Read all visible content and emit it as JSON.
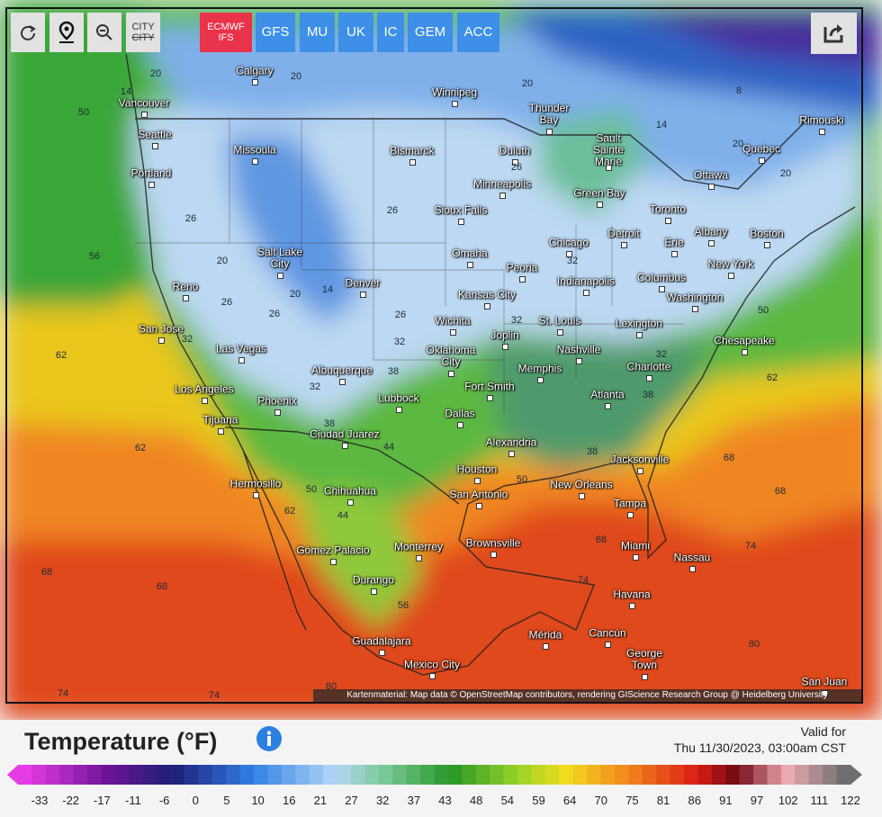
{
  "toolbar": {
    "city_toggle": [
      "CITY",
      "CITY"
    ],
    "models": [
      "ECMWF IFS",
      "GFS",
      "MU",
      "UK",
      "IC",
      "GEM",
      "ACC"
    ]
  },
  "map": {
    "cities": [
      "Calgary",
      "Winnipeg",
      "Vancouver",
      "Seattle",
      "Thunder Bay",
      "Rimouski",
      "Sault Sainte Marie",
      "Missoula",
      "Bismarck",
      "Duluth",
      "Quebec",
      "Portland",
      "Ottawa",
      "Minneapolis",
      "Green Bay",
      "Sioux Falls",
      "Toronto",
      "Albany",
      "Boston",
      "Salt Lake City",
      "Chicago",
      "Detroit",
      "Erie",
      "Omaha",
      "New York",
      "Peoria",
      "Reno",
      "Denver",
      "Indianapolis",
      "Columbus",
      "Kansas City",
      "Washington",
      "San Jose",
      "Wichita",
      "St. Louis",
      "Lexington",
      "Joplin",
      "Las Vegas",
      "Chesapeake",
      "Oklahoma City",
      "Nashville",
      "Albuquerque",
      "Memphis",
      "Charlotte",
      "Los Angeles",
      "Fort Smith",
      "Lubbock",
      "Atlanta",
      "Phoenix",
      "Dallas",
      "Tijuana",
      "Ciudad Juárez",
      "Alexandria",
      "Jacksonville",
      "Houston",
      "Hermosillo",
      "New Orleans",
      "Chihuahua",
      "San Antonio",
      "Tampa",
      "Brownsville",
      "Miami",
      "Gómez Palacio",
      "Monterrey",
      "Nassau",
      "Durango",
      "Havana",
      "Mérida",
      "Cancún",
      "Guadalajara",
      "George Town",
      "Mexico City",
      "San Juan"
    ],
    "isotherm_labels": [
      50,
      56,
      62,
      62,
      68,
      68,
      74,
      74,
      20,
      20,
      14,
      26,
      20,
      26,
      20,
      14,
      26,
      32,
      32,
      38,
      44,
      50,
      44,
      56,
      62,
      38,
      32,
      26,
      26,
      32,
      32,
      26,
      20,
      68,
      68,
      74,
      62,
      50,
      80,
      80,
      74,
      68,
      50,
      38,
      38,
      32,
      20,
      20,
      14,
      8
    ],
    "attribution": "Kartenmaterial: Map data © OpenStreetMap contributors, rendering GIScience Research Group @ Heidelberg University"
  },
  "footer": {
    "title": "Temperature (°F)",
    "valid_label": "Valid for",
    "valid_time": "Thu 11/30/2023, 03:00am CST"
  },
  "legend": {
    "ticks": [
      -33,
      -22,
      -17,
      -11,
      -6,
      0,
      5,
      10,
      16,
      21,
      27,
      32,
      37,
      43,
      48,
      54,
      59,
      64,
      70,
      75,
      81,
      86,
      91,
      97,
      102,
      111,
      122
    ]
  }
}
